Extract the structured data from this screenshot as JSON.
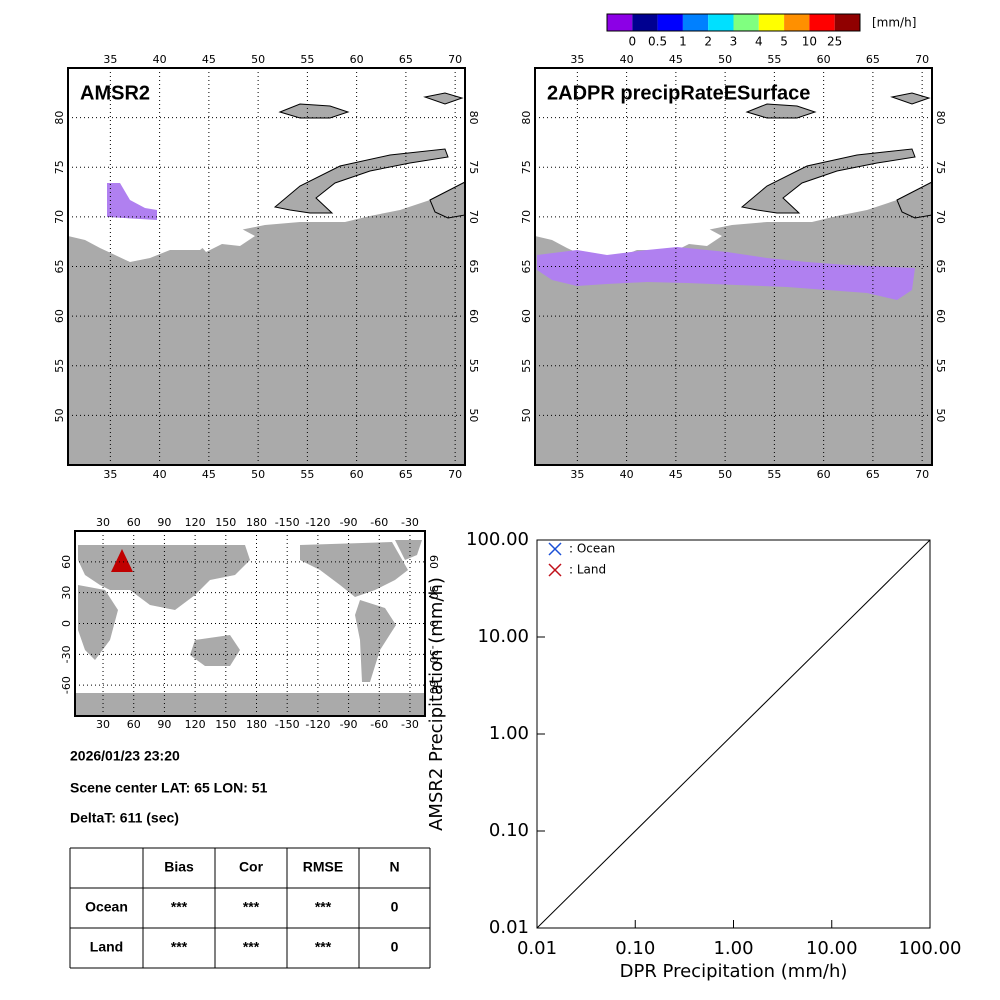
{
  "colorbar": {
    "unit": "[mm/h]",
    "colors": [
      "#8c00e6",
      "#000090",
      "#0000ff",
      "#0080ff",
      "#00e0ff",
      "#80ff80",
      "#ffff00",
      "#ff9000",
      "#ff0000",
      "#900000"
    ],
    "ticks": [
      0,
      0.5,
      1,
      2,
      3,
      4,
      5,
      10,
      25
    ]
  },
  "maps": [
    {
      "title": "AMSR2",
      "xlim": [
        30.7,
        71
      ],
      "ylim": [
        45,
        85
      ],
      "xticks": [
        35,
        40,
        45,
        50,
        55,
        60,
        65,
        70
      ],
      "yticks": [
        50,
        55,
        60,
        65,
        70,
        75,
        80
      ]
    },
    {
      "title": "2ADPR precipRateESurface",
      "xlim": [
        30.7,
        71
      ],
      "ylim": [
        45,
        85
      ],
      "xticks": [
        35,
        40,
        45,
        50,
        55,
        60,
        65,
        70
      ],
      "yticks": [
        50,
        55,
        60,
        65,
        70,
        75,
        80
      ]
    }
  ],
  "globe": {
    "xlim": [
      2.6,
      344.7
    ],
    "ylim": [
      -90,
      90
    ],
    "xticks": [
      30,
      60,
      90,
      120,
      150,
      180,
      {
        "value": 210,
        "label": "-150"
      },
      {
        "value": 240,
        "label": "-120"
      },
      {
        "value": 270,
        "label": "-90"
      },
      {
        "value": 300,
        "label": "-60"
      },
      {
        "value": 330,
        "label": "-30"
      }
    ],
    "yticks": [
      -60,
      -30,
      0,
      30,
      60
    ]
  },
  "info": {
    "datetime": "2026/01/23 23:20",
    "scene": "Scene center LAT: 65   LON:  51",
    "delta": "DeltaT:  611 (sec)"
  },
  "table": {
    "header": [
      "Bias",
      "Cor",
      "RMSE",
      "N"
    ],
    "rows": [
      {
        "label": "Ocean",
        "cells": [
          "***",
          "***",
          "***",
          0
        ]
      },
      {
        "label": "Land",
        "cells": [
          "***",
          "***",
          "***",
          0
        ]
      }
    ]
  },
  "chart_data": {
    "type": "scatter",
    "xlabel": "DPR Precipitation (mm/h)",
    "ylabel": "AMSR2 Precipitation (mm/h)",
    "log_x": true,
    "log_y": true,
    "xlim": [
      0.01,
      100
    ],
    "ylim": [
      0.01,
      100
    ],
    "xticks": [
      0.01,
      {
        "value": 0.1,
        "label": "0.10"
      },
      {
        "value": 1,
        "label": "1.00"
      },
      {
        "value": 10,
        "label": "10.00"
      },
      {
        "value": 100,
        "label": "100.00"
      }
    ],
    "yticks": [
      0.01,
      {
        "value": 0.1,
        "label": "0.10"
      },
      {
        "value": 1,
        "label": "1.00"
      },
      {
        "value": 10,
        "label": "10.00"
      },
      {
        "value": 100,
        "label": "100.00"
      }
    ],
    "series": [
      {
        "name": ": Ocean",
        "color": "#1a4fd6",
        "marker": "x",
        "x": [],
        "values": []
      },
      {
        "name": ": Land",
        "color": "#c0101a",
        "marker": "x",
        "x": [],
        "values": []
      }
    ],
    "legend": "upper left"
  }
}
